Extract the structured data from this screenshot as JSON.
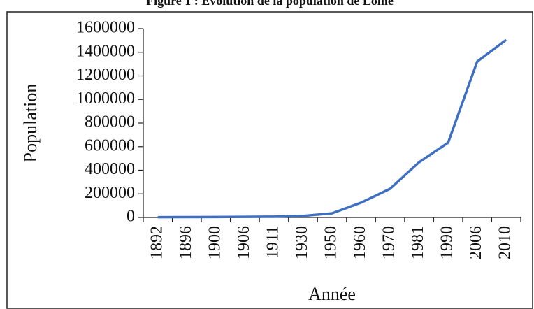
{
  "chart_data": {
    "type": "line",
    "title": "Figure 1 : Evolution de la population de Lomé",
    "x_label": "Année",
    "y_label": "Population",
    "categories": [
      "1892",
      "1896",
      "1900",
      "1906",
      "1911",
      "1930",
      "1950",
      "1960",
      "1970",
      "1981",
      "1990",
      "2006",
      "2010"
    ],
    "series": [
      {
        "name": "Population",
        "color": "#3f6fc1",
        "values": [
          2000,
          3000,
          4000,
          5000,
          7000,
          13000,
          35000,
          125000,
          243000,
          468000,
          634000,
          1321000,
          1505000
        ]
      }
    ],
    "ylim": [
      0,
      1600000
    ],
    "yticks": [
      0,
      200000,
      400000,
      600000,
      800000,
      1000000,
      1200000,
      1400000,
      1600000
    ],
    "grid": false
  }
}
